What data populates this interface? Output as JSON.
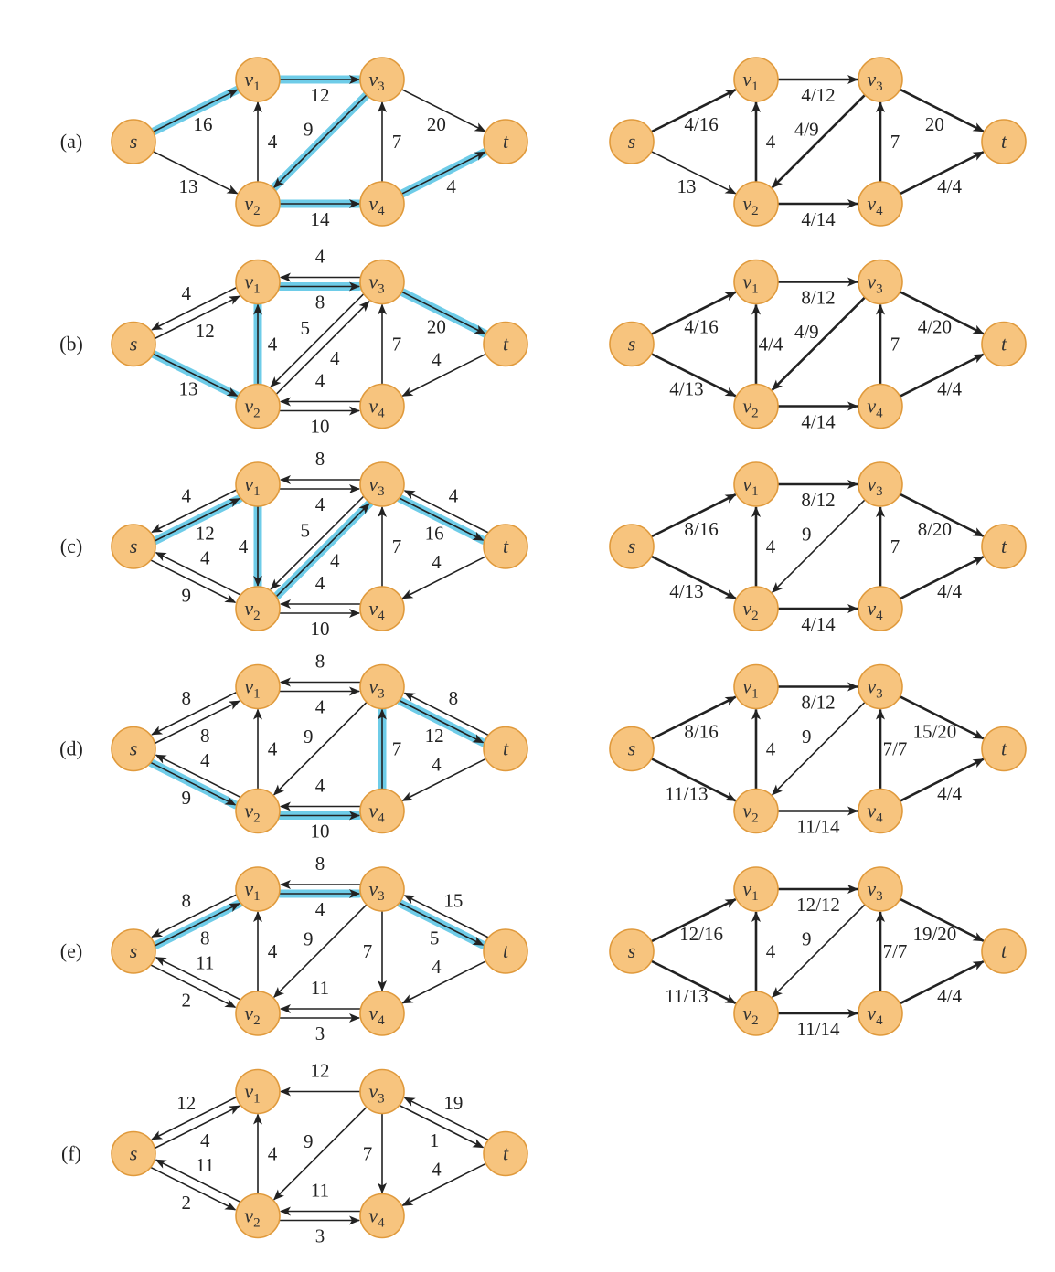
{
  "colors": {
    "node_fill": "#f7c47e",
    "node_stroke": "#e09a3c",
    "highlight": "#5ec7e6",
    "edge": "#222222"
  },
  "nodes": [
    "s",
    "v1",
    "v2",
    "v3",
    "v4",
    "t"
  ],
  "node_labels": {
    "s": {
      "main": "s",
      "sub": ""
    },
    "v1": {
      "main": "v",
      "sub": "1"
    },
    "v2": {
      "main": "v",
      "sub": "2"
    },
    "v3": {
      "main": "v",
      "sub": "3"
    },
    "v4": {
      "main": "v",
      "sub": "4"
    },
    "t": {
      "main": "t",
      "sub": ""
    }
  },
  "rows": [
    {
      "label": "(a)",
      "residual": {
        "edges": [
          {
            "from": "s",
            "to": "v1",
            "label": "16",
            "hl": true
          },
          {
            "from": "s",
            "to": "v2",
            "label": "13"
          },
          {
            "from": "v1",
            "to": "v3",
            "label": "12",
            "hl": true
          },
          {
            "from": "v2",
            "to": "v1",
            "label": "4"
          },
          {
            "from": "v3",
            "to": "v2",
            "label": "9",
            "hl": true
          },
          {
            "from": "v2",
            "to": "v4",
            "label": "14",
            "hl": true
          },
          {
            "from": "v4",
            "to": "v3",
            "label": "7"
          },
          {
            "from": "v3",
            "to": "t",
            "label": "20"
          },
          {
            "from": "v4",
            "to": "t",
            "label": "4",
            "hl": true
          }
        ]
      },
      "flow": {
        "edges": [
          {
            "from": "s",
            "to": "v1",
            "label": "4/16",
            "thick": true
          },
          {
            "from": "s",
            "to": "v2",
            "label": "13"
          },
          {
            "from": "v1",
            "to": "v3",
            "label": "4/12",
            "thick": true
          },
          {
            "from": "v2",
            "to": "v1",
            "label": "4",
            "thick": true
          },
          {
            "from": "v3",
            "to": "v2",
            "label": "4/9",
            "thick": true
          },
          {
            "from": "v2",
            "to": "v4",
            "label": "4/14",
            "thick": true
          },
          {
            "from": "v4",
            "to": "v3",
            "label": "7",
            "thick": true
          },
          {
            "from": "v3",
            "to": "t",
            "label": "20",
            "thick": true
          },
          {
            "from": "v4",
            "to": "t",
            "label": "4/4",
            "thick": true
          }
        ]
      }
    },
    {
      "label": "(b)",
      "residual": {
        "edges": [
          {
            "from": "s",
            "to": "v1",
            "label": "12",
            "off": 1
          },
          {
            "from": "v1",
            "to": "s",
            "label": "4",
            "off": 1
          },
          {
            "from": "s",
            "to": "v2",
            "label": "13",
            "hl": true
          },
          {
            "from": "v1",
            "to": "v3",
            "label": "8",
            "off": 1,
            "hl": true
          },
          {
            "from": "v3",
            "to": "v1",
            "label": "4",
            "off": 1
          },
          {
            "from": "v2",
            "to": "v1",
            "label": "4",
            "hl": true
          },
          {
            "from": "v2",
            "to": "v3",
            "label": "4",
            "off": 1
          },
          {
            "from": "v3",
            "to": "v2",
            "label": "5",
            "off": 1
          },
          {
            "from": "v2",
            "to": "v4",
            "label": "10",
            "off": 1
          },
          {
            "from": "v4",
            "to": "v2",
            "label": "4",
            "off": 1
          },
          {
            "from": "v4",
            "to": "v3",
            "label": "7"
          },
          {
            "from": "v3",
            "to": "t",
            "label": "20",
            "hl": true
          },
          {
            "from": "t",
            "to": "v4",
            "label": "4"
          }
        ]
      },
      "flow": {
        "edges": [
          {
            "from": "s",
            "to": "v1",
            "label": "4/16",
            "thick": true
          },
          {
            "from": "s",
            "to": "v2",
            "label": "4/13",
            "thick": true
          },
          {
            "from": "v1",
            "to": "v3",
            "label": "8/12",
            "thick": true
          },
          {
            "from": "v2",
            "to": "v1",
            "label": "4/4",
            "thick": true
          },
          {
            "from": "v3",
            "to": "v2",
            "label": "4/9",
            "thick": true
          },
          {
            "from": "v2",
            "to": "v4",
            "label": "4/14",
            "thick": true
          },
          {
            "from": "v4",
            "to": "v3",
            "label": "7",
            "thick": true
          },
          {
            "from": "v3",
            "to": "t",
            "label": "4/20",
            "thick": true
          },
          {
            "from": "v4",
            "to": "t",
            "label": "4/4",
            "thick": true
          }
        ]
      }
    },
    {
      "label": "(c)",
      "residual": {
        "edges": [
          {
            "from": "s",
            "to": "v1",
            "label": "12",
            "off": 1,
            "hl": true
          },
          {
            "from": "v1",
            "to": "s",
            "label": "4",
            "off": 1
          },
          {
            "from": "s",
            "to": "v2",
            "label": "9",
            "off": 1
          },
          {
            "from": "v2",
            "to": "s",
            "label": "4",
            "off": 1
          },
          {
            "from": "v1",
            "to": "v3",
            "label": "4",
            "off": 1
          },
          {
            "from": "v3",
            "to": "v1",
            "label": "8",
            "off": 1
          },
          {
            "from": "v1",
            "to": "v2",
            "label": "4",
            "hl": true
          },
          {
            "from": "v2",
            "to": "v3",
            "label": "4",
            "off": 1,
            "hl": true
          },
          {
            "from": "v3",
            "to": "v2",
            "label": "5",
            "off": 1
          },
          {
            "from": "v2",
            "to": "v4",
            "label": "10",
            "off": 1
          },
          {
            "from": "v4",
            "to": "v2",
            "label": "4",
            "off": 1
          },
          {
            "from": "v4",
            "to": "v3",
            "label": "7"
          },
          {
            "from": "v3",
            "to": "t",
            "label": "16",
            "off": 1,
            "hl": true
          },
          {
            "from": "t",
            "to": "v3",
            "label": "4",
            "off": 1
          },
          {
            "from": "t",
            "to": "v4",
            "label": "4"
          }
        ]
      },
      "flow": {
        "edges": [
          {
            "from": "s",
            "to": "v1",
            "label": "8/16",
            "thick": true
          },
          {
            "from": "s",
            "to": "v2",
            "label": "4/13",
            "thick": true
          },
          {
            "from": "v1",
            "to": "v3",
            "label": "8/12",
            "thick": true
          },
          {
            "from": "v2",
            "to": "v1",
            "label": "4",
            "thick": true
          },
          {
            "from": "v3",
            "to": "v2",
            "label": "9"
          },
          {
            "from": "v2",
            "to": "v4",
            "label": "4/14",
            "thick": true
          },
          {
            "from": "v4",
            "to": "v3",
            "label": "7",
            "thick": true
          },
          {
            "from": "v3",
            "to": "t",
            "label": "8/20",
            "thick": true
          },
          {
            "from": "v4",
            "to": "t",
            "label": "4/4",
            "thick": true
          }
        ]
      }
    },
    {
      "label": "(d)",
      "residual": {
        "edges": [
          {
            "from": "s",
            "to": "v1",
            "label": "8",
            "off": 1
          },
          {
            "from": "v1",
            "to": "s",
            "label": "8",
            "off": 1
          },
          {
            "from": "s",
            "to": "v2",
            "label": "9",
            "off": 1,
            "hl": true
          },
          {
            "from": "v2",
            "to": "s",
            "label": "4",
            "off": 1
          },
          {
            "from": "v1",
            "to": "v3",
            "label": "4",
            "off": 1
          },
          {
            "from": "v3",
            "to": "v1",
            "label": "8",
            "off": 1
          },
          {
            "from": "v2",
            "to": "v1",
            "label": "4"
          },
          {
            "from": "v3",
            "to": "v2",
            "label": "9"
          },
          {
            "from": "v2",
            "to": "v4",
            "label": "10",
            "off": 1,
            "hl": true
          },
          {
            "from": "v4",
            "to": "v2",
            "label": "4",
            "off": 1
          },
          {
            "from": "v4",
            "to": "v3",
            "label": "7",
            "hl": true
          },
          {
            "from": "v3",
            "to": "t",
            "label": "12",
            "off": 1,
            "hl": true
          },
          {
            "from": "t",
            "to": "v3",
            "label": "8",
            "off": 1
          },
          {
            "from": "t",
            "to": "v4",
            "label": "4"
          }
        ]
      },
      "flow": {
        "edges": [
          {
            "from": "s",
            "to": "v1",
            "label": "8/16",
            "thick": true
          },
          {
            "from": "s",
            "to": "v2",
            "label": "11/13",
            "thick": true
          },
          {
            "from": "v1",
            "to": "v3",
            "label": "8/12",
            "thick": true
          },
          {
            "from": "v2",
            "to": "v1",
            "label": "4",
            "thick": true
          },
          {
            "from": "v3",
            "to": "v2",
            "label": "9"
          },
          {
            "from": "v2",
            "to": "v4",
            "label": "11/14",
            "thick": true
          },
          {
            "from": "v4",
            "to": "v3",
            "label": "7/7",
            "thick": true
          },
          {
            "from": "v3",
            "to": "t",
            "label": "15/20",
            "thick": true
          },
          {
            "from": "v4",
            "to": "t",
            "label": "4/4",
            "thick": true
          }
        ]
      }
    },
    {
      "label": "(e)",
      "residual": {
        "edges": [
          {
            "from": "s",
            "to": "v1",
            "label": "8",
            "off": 1,
            "hl": true
          },
          {
            "from": "v1",
            "to": "s",
            "label": "8",
            "off": 1
          },
          {
            "from": "s",
            "to": "v2",
            "label": "2",
            "off": 1
          },
          {
            "from": "v2",
            "to": "s",
            "label": "11",
            "off": 1
          },
          {
            "from": "v1",
            "to": "v3",
            "label": "4",
            "off": 1,
            "hl": true
          },
          {
            "from": "v3",
            "to": "v1",
            "label": "8",
            "off": 1
          },
          {
            "from": "v2",
            "to": "v1",
            "label": "4"
          },
          {
            "from": "v3",
            "to": "v2",
            "label": "9"
          },
          {
            "from": "v2",
            "to": "v4",
            "label": "3",
            "off": 1
          },
          {
            "from": "v4",
            "to": "v2",
            "label": "11",
            "off": 1
          },
          {
            "from": "v3",
            "to": "v4",
            "label": "7"
          },
          {
            "from": "v3",
            "to": "t",
            "label": "5",
            "off": 1,
            "hl": true
          },
          {
            "from": "t",
            "to": "v3",
            "label": "15",
            "off": 1
          },
          {
            "from": "t",
            "to": "v4",
            "label": "4"
          }
        ]
      },
      "flow": {
        "edges": [
          {
            "from": "s",
            "to": "v1",
            "label": "12/16",
            "thick": true
          },
          {
            "from": "s",
            "to": "v2",
            "label": "11/13",
            "thick": true
          },
          {
            "from": "v1",
            "to": "v3",
            "label": "12/12",
            "thick": true
          },
          {
            "from": "v2",
            "to": "v1",
            "label": "4",
            "thick": true
          },
          {
            "from": "v3",
            "to": "v2",
            "label": "9"
          },
          {
            "from": "v2",
            "to": "v4",
            "label": "11/14",
            "thick": true
          },
          {
            "from": "v4",
            "to": "v3",
            "label": "7/7",
            "thick": true
          },
          {
            "from": "v3",
            "to": "t",
            "label": "19/20",
            "thick": true
          },
          {
            "from": "v4",
            "to": "t",
            "label": "4/4",
            "thick": true
          }
        ]
      }
    },
    {
      "label": "(f)",
      "residual": {
        "edges": [
          {
            "from": "s",
            "to": "v1",
            "label": "4",
            "off": 1
          },
          {
            "from": "v1",
            "to": "s",
            "label": "12",
            "off": 1
          },
          {
            "from": "s",
            "to": "v2",
            "label": "2",
            "off": 1
          },
          {
            "from": "v2",
            "to": "s",
            "label": "11",
            "off": 1
          },
          {
            "from": "v3",
            "to": "v1",
            "label": "12"
          },
          {
            "from": "v2",
            "to": "v1",
            "label": "4"
          },
          {
            "from": "v3",
            "to": "v2",
            "label": "9"
          },
          {
            "from": "v2",
            "to": "v4",
            "label": "3",
            "off": 1
          },
          {
            "from": "v4",
            "to": "v2",
            "label": "11",
            "off": 1
          },
          {
            "from": "v3",
            "to": "v4",
            "label": "7"
          },
          {
            "from": "v3",
            "to": "t",
            "label": "1",
            "off": 1
          },
          {
            "from": "t",
            "to": "v3",
            "label": "19",
            "off": 1
          },
          {
            "from": "t",
            "to": "v4",
            "label": "4"
          }
        ]
      },
      "flow": null
    }
  ]
}
